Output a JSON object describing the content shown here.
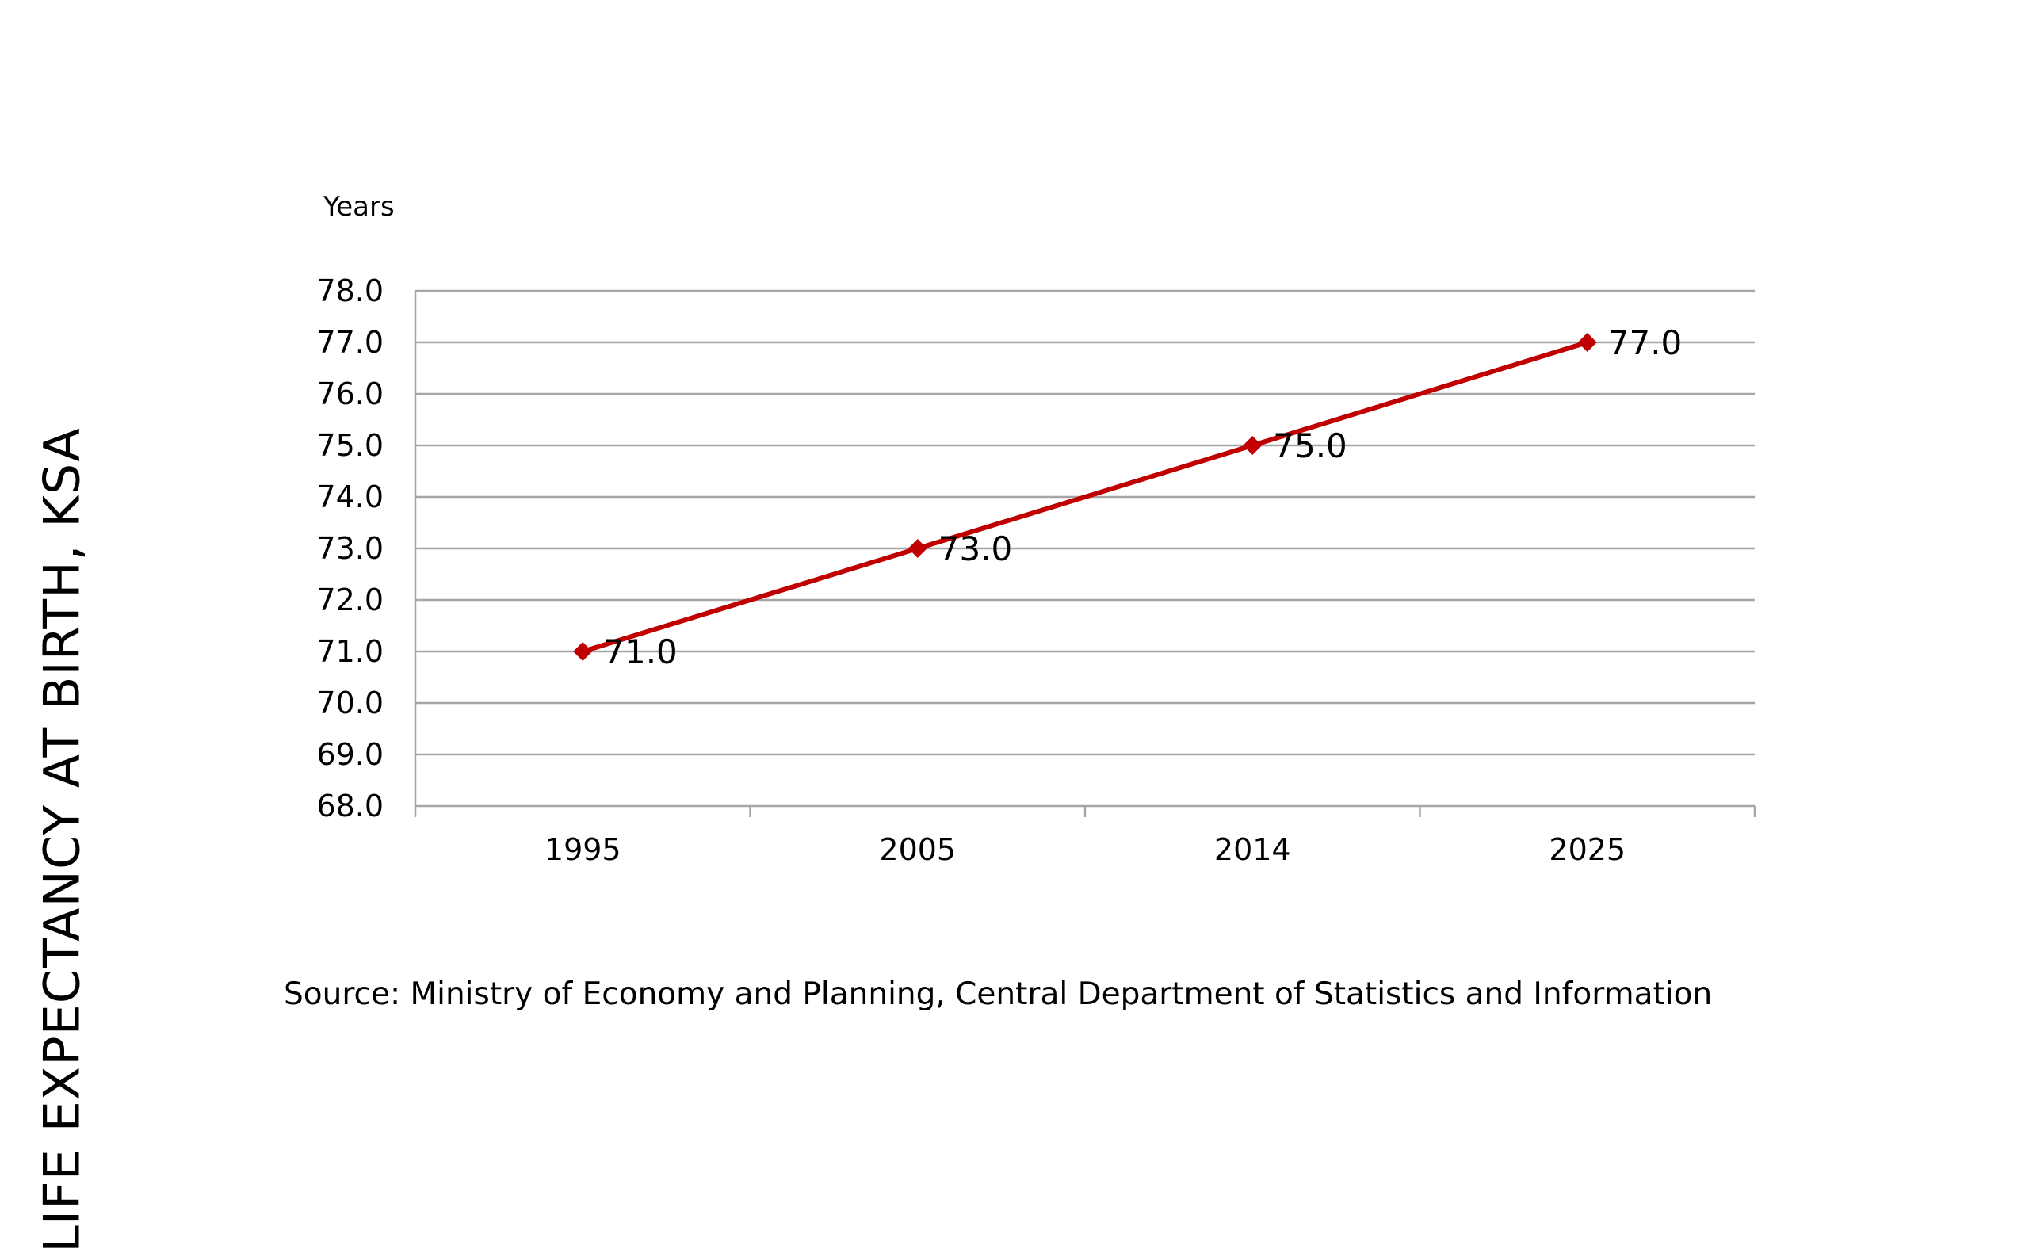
{
  "slide": {
    "side_title": "LIFE EXPECTANCY AT BIRTH, KSA",
    "source": "Source: Ministry of Economy and Planning, Central Department of Statistics and Information"
  },
  "chart_data": {
    "type": "line",
    "ylabel": "Years",
    "categories": [
      "1995",
      "2005",
      "2014",
      "2025"
    ],
    "series": [
      {
        "values": [
          71.0,
          73.0,
          75.0,
          77.0
        ],
        "color": "#c00000",
        "marker": "diamond"
      }
    ],
    "data_labels": [
      "71.0",
      "73.0",
      "75.0",
      "77.0"
    ],
    "ylim": [
      68.0,
      78.0
    ],
    "yticks": [
      "68.0",
      "69.0",
      "70.0",
      "71.0",
      "72.0",
      "73.0",
      "74.0",
      "75.0",
      "76.0",
      "77.0",
      "78.0"
    ],
    "grid": true,
    "legend": "none",
    "gridline_color": "#a6a6a6"
  }
}
